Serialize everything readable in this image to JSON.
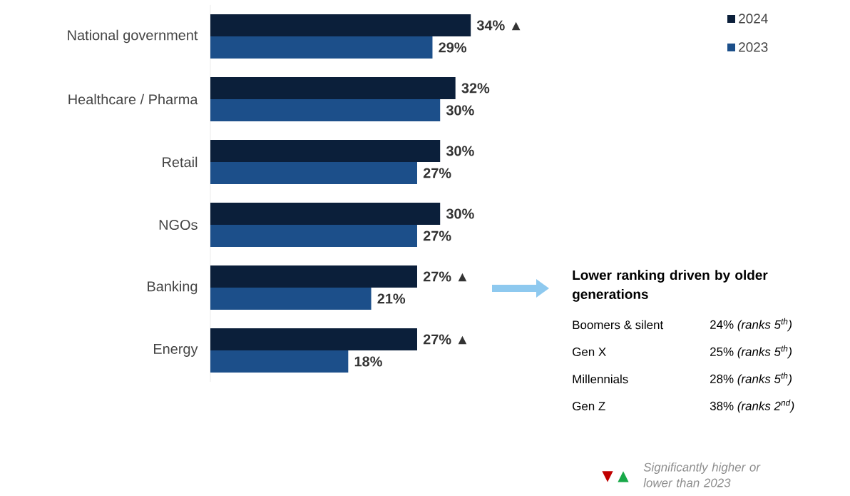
{
  "chart_data": {
    "type": "bar",
    "orientation": "horizontal",
    "categories": [
      "National government",
      "Healthcare / Pharma",
      "Retail",
      "NGOs",
      "Banking",
      "Energy"
    ],
    "series": [
      {
        "name": "2024",
        "color": "#0b1f3a",
        "values": [
          34,
          32,
          30,
          30,
          27,
          27
        ],
        "value_labels": [
          "34% ▲",
          "32%",
          "30%",
          "30%",
          "27% ▲",
          "27% ▲"
        ]
      },
      {
        "name": "2023",
        "color": "#1c4f8a",
        "values": [
          29,
          30,
          27,
          27,
          21,
          18
        ],
        "value_labels": [
          "29%",
          "30%",
          "27%",
          "27%",
          "21%",
          "18%"
        ]
      }
    ],
    "legend": "top right",
    "annotations": [
      "Lower ranking driven by older generations",
      "Boomers & silent",
      "24% *(ranks 5$^{th}$)*",
      "Gen X",
      "25% *(ranks 5$^{th}$)*",
      "Millennials",
      "28% *(ranks 5$^{th}$)*",
      "Gen Z",
      "38% *(ranks 2$^{nd}$)*",
      "▼",
      "▲",
      "Significantly higher or lower than 2023"
    ]
  }
}
